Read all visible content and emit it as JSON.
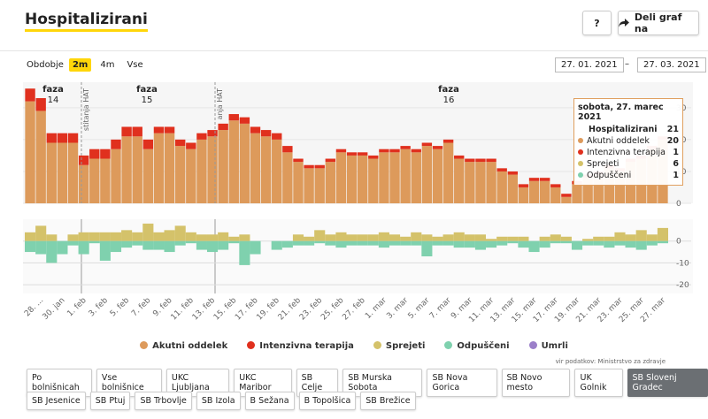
{
  "header": {
    "title": "Hospitalizirani",
    "help": "?",
    "share": "Deli graf na"
  },
  "period": {
    "label": "Obdobje",
    "options": [
      "2m",
      "4m",
      "Vse"
    ],
    "selected": 0,
    "from": "27. 01. 2021",
    "separator": "–",
    "to": "27. 03. 2021"
  },
  "chart_data": [
    {
      "type": "stacked-bar",
      "ylim": [
        0,
        38
      ],
      "yticks": [
        0,
        10,
        20,
        30
      ],
      "grid": true,
      "series": [
        {
          "name": "Akutni oddelek",
          "color": "#dd9a5b",
          "values": [
            32,
            29,
            19,
            19,
            19,
            12,
            14,
            14,
            17,
            21,
            21,
            17,
            22,
            22,
            18,
            17,
            20,
            21,
            23,
            26,
            25,
            22,
            21,
            20,
            16,
            13,
            11,
            11,
            13,
            16,
            15,
            15,
            14,
            16,
            16,
            17,
            16,
            18,
            17,
            19,
            14,
            13,
            13,
            13,
            10,
            9,
            5,
            7,
            7,
            5,
            2,
            6,
            8,
            9,
            11,
            10,
            13,
            14,
            17,
            20
          ]
        },
        {
          "name": "Intenzivna terapija",
          "color": "#e0301e",
          "values": [
            4,
            4,
            3,
            3,
            3,
            3,
            3,
            3,
            3,
            3,
            3,
            3,
            2,
            2,
            2,
            2,
            2,
            2,
            2,
            2,
            2,
            2,
            2,
            2,
            2,
            1,
            1,
            1,
            1,
            1,
            1,
            1,
            1,
            1,
            1,
            1,
            1,
            1,
            1,
            1,
            1,
            1,
            1,
            1,
            1,
            1,
            1,
            1,
            1,
            1,
            1,
            1,
            1,
            1,
            1,
            1,
            1,
            1,
            1,
            1
          ]
        }
      ],
      "annotations": [
        {
          "text": "faza",
          "number": 14
        },
        {
          "text": "faza",
          "number": 15
        },
        {
          "text": "faza",
          "number": 16
        }
      ],
      "markers": [
        "stitanja HAT",
        "anja HAT"
      ]
    },
    {
      "type": "bar",
      "ylim": [
        -24,
        10
      ],
      "yticks": [
        0,
        -10,
        -20
      ],
      "categories": [
        null,
        "28. ...",
        null,
        "30. jan",
        null,
        "1. feb",
        null,
        "3. feb",
        null,
        "5. feb",
        null,
        "7. feb",
        null,
        "9. feb",
        null,
        "11. feb",
        null,
        "13. feb",
        null,
        "15. feb",
        null,
        "17. feb",
        null,
        "19. feb",
        null,
        "21. feb",
        null,
        "23. feb",
        null,
        "25. feb",
        null,
        "27. feb",
        null,
        "1. mar",
        null,
        "3. mar",
        null,
        "5. mar",
        null,
        "7. mar",
        null,
        "9. mar",
        null,
        "11. mar",
        null,
        "13. mar",
        null,
        "15. mar",
        null,
        "17. mar",
        null,
        "19. mar",
        null,
        "21. mar",
        null,
        "23. mar",
        null,
        "25. mar",
        null,
        "27. mar"
      ],
      "series": [
        {
          "name": "Sprejeti",
          "color": "#d4c26a",
          "values": [
            4,
            7,
            3,
            0,
            3,
            4,
            4,
            4,
            4,
            5,
            4,
            8,
            4,
            5,
            7,
            4,
            3,
            3,
            4,
            2,
            3,
            0,
            0,
            0,
            0,
            3,
            2,
            5,
            3,
            4,
            3,
            3,
            3,
            4,
            3,
            2,
            4,
            3,
            2,
            3,
            4,
            3,
            3,
            1,
            2,
            2,
            2,
            0,
            2,
            3,
            2,
            0,
            1,
            2,
            2,
            4,
            3,
            5,
            3,
            6
          ]
        },
        {
          "name": "Odpuščeni",
          "color": "#7fd1ae",
          "values": [
            -5,
            -6,
            -10,
            -6,
            -2,
            -6,
            -1,
            -9,
            -5,
            -3,
            -2,
            -4,
            -4,
            -5,
            -2,
            -1,
            -4,
            -5,
            -4,
            -1,
            -11,
            -6,
            0,
            -4,
            -3,
            -2,
            -2,
            -1,
            -2,
            -3,
            -2,
            -2,
            -2,
            -3,
            -2,
            -2,
            -2,
            -7,
            -2,
            -2,
            -3,
            -3,
            -4,
            -3,
            -2,
            -1,
            -3,
            -5,
            -3,
            -1,
            -1,
            -4,
            -2,
            -2,
            -3,
            -2,
            -3,
            -4,
            -2,
            -1
          ]
        },
        {
          "name": "Umrli",
          "color": "#9b7fc9",
          "values": [
            0,
            0,
            0,
            0,
            0,
            0,
            0,
            0,
            0,
            0,
            0,
            0,
            0,
            0,
            0,
            0,
            0,
            0,
            0,
            0,
            0,
            0,
            0,
            0,
            0,
            0,
            0,
            0,
            0,
            0,
            0,
            0,
            0,
            0,
            0,
            0,
            0,
            0,
            0,
            0,
            0,
            0,
            0,
            0,
            0,
            0,
            0,
            0,
            0,
            0,
            0,
            0,
            0,
            0,
            0,
            0,
            0,
            0,
            0,
            0
          ]
        }
      ]
    }
  ],
  "tooltip": {
    "title": "sobota, 27. marec 2021",
    "rows": [
      {
        "label": "Hospitalizirani",
        "value": 21
      },
      {
        "label": "Akutni oddelek",
        "value": 20,
        "color": "#dd9a5b"
      },
      {
        "label": "Intenzivna terapija",
        "value": 1,
        "color": "#e0301e"
      },
      {
        "label": "Sprejeti",
        "value": 6,
        "color": "#d4c26a"
      },
      {
        "label": "Odpuščeni",
        "value": 1,
        "color": "#7fd1ae"
      }
    ]
  },
  "source": "vir podatkov: Ministrstvo za zdravje",
  "hospitals": {
    "rows": [
      [
        "Po bolnišnicah",
        "Vse bolnišnice",
        "UKC Ljubljana",
        "UKC Maribor",
        "SB Celje",
        "SB Murska Sobota",
        "SB Nova Gorica",
        "SB Novo mesto",
        "UK Golnik",
        "SB Slovenj Gradec"
      ],
      [
        "SB Jesenice",
        "SB Ptuj",
        "SB Trbovlje",
        "SB Izola",
        "B Sežana",
        "B Topolšica",
        "SB Brežice"
      ]
    ],
    "selected": [
      0,
      9
    ]
  }
}
